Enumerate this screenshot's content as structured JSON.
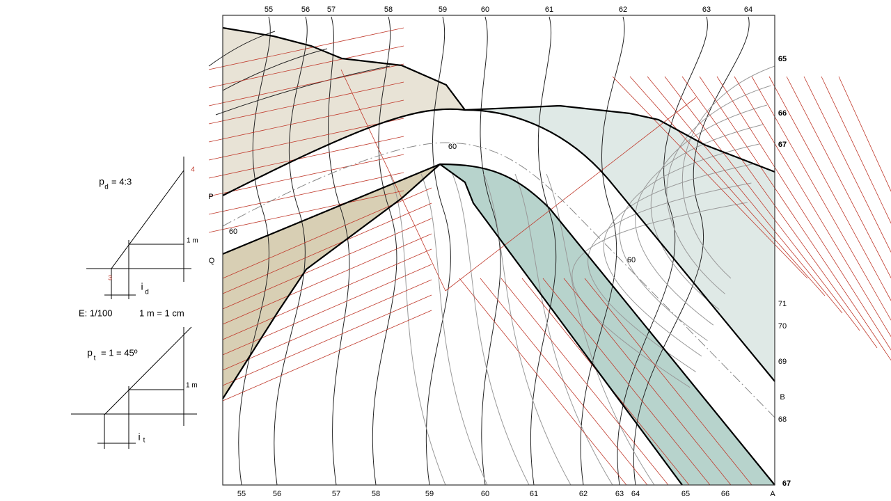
{
  "map": {
    "top_labels": [
      "55",
      "56",
      "57",
      "58",
      "59",
      "60",
      "61",
      "62",
      "63",
      "64"
    ],
    "right_labels": [
      "65",
      "66",
      "67",
      "71",
      "70",
      "69",
      "B",
      "68",
      "67"
    ],
    "bottom_labels": [
      "55",
      "56",
      "57",
      "58",
      "59",
      "60",
      "61",
      "62",
      "63",
      "64",
      "65",
      "66",
      "A"
    ],
    "inner_labels": [
      "60",
      "60",
      "60"
    ],
    "edge_labels": [
      "P",
      "Q"
    ]
  },
  "legend": {
    "pd": {
      "p": "p",
      "sub": "d",
      "rest": "= 4:3"
    },
    "red_top": "4",
    "red_bottom": "3",
    "m1_top": "1 m",
    "id": {
      "i": "i",
      "sub": "d"
    },
    "scale": "E: 1/100",
    "equiv": "1 m = 1 cm",
    "pt": {
      "p": "p",
      "sub": "t",
      "rest": "= 1 = 45º"
    },
    "m1_bottom": "1 m",
    "it": {
      "i": "i",
      "sub": "t"
    }
  }
}
